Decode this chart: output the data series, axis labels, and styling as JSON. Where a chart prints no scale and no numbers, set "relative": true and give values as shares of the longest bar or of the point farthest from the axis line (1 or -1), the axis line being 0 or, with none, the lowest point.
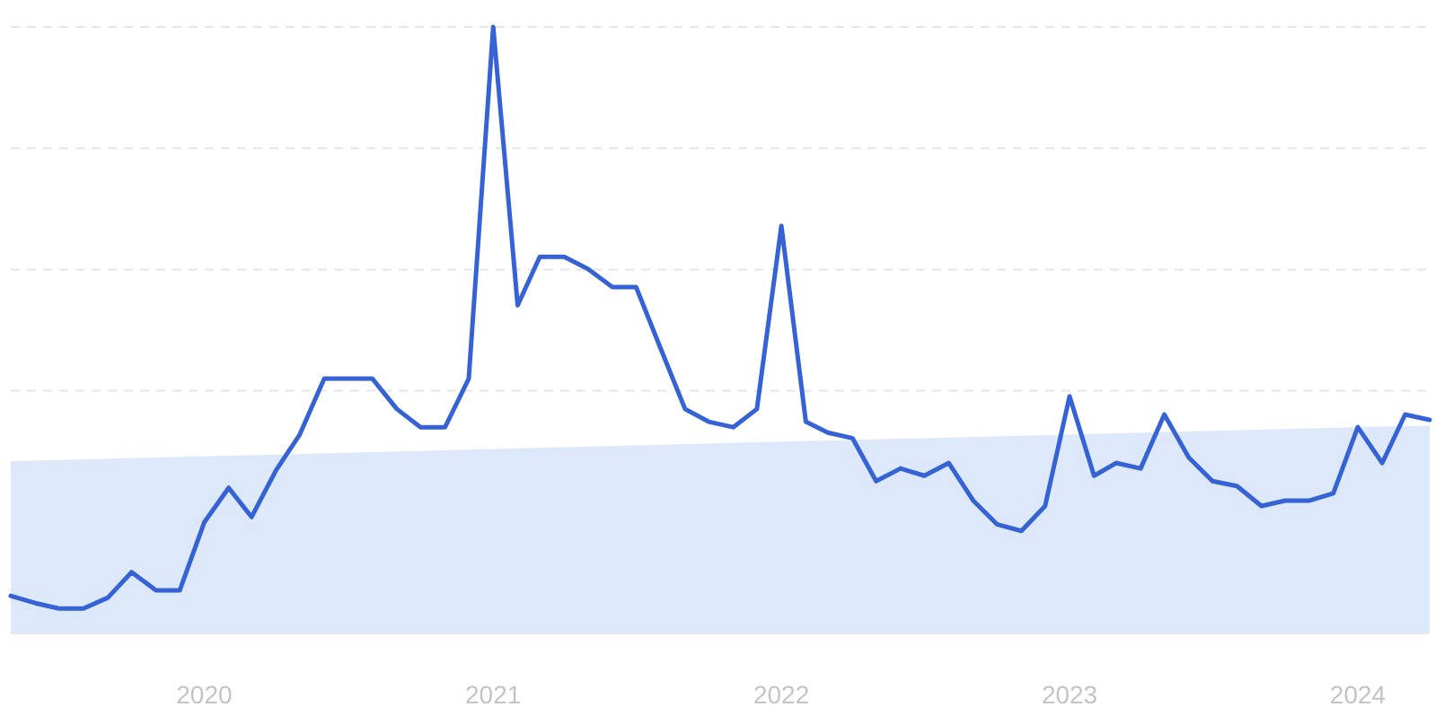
{
  "chart_data": {
    "type": "line",
    "relative": true,
    "x": [
      "2019-05",
      "2019-06",
      "2019-07",
      "2019-08",
      "2019-09",
      "2019-10",
      "2019-11",
      "2019-12",
      "2020-01",
      "2020-02",
      "2020-03",
      "2020-04",
      "2020-05",
      "2020-06",
      "2020-07",
      "2020-08",
      "2020-09",
      "2020-10",
      "2020-11",
      "2020-12",
      "2021-01",
      "2021-02",
      "2021-03",
      "2021-04",
      "2021-05",
      "2021-06",
      "2021-07",
      "2021-08",
      "2021-09",
      "2021-10",
      "2021-11",
      "2021-12",
      "2022-01",
      "2022-02",
      "2022-03",
      "2022-04",
      "2022-05",
      "2022-06",
      "2022-07",
      "2022-08",
      "2022-09",
      "2022-10",
      "2022-11",
      "2022-12",
      "2023-01",
      "2023-02",
      "2023-03",
      "2023-04",
      "2023-05",
      "2023-06",
      "2023-07",
      "2023-08",
      "2023-09",
      "2023-10",
      "2023-11",
      "2023-12",
      "2024-01",
      "2024-02",
      "2024-03",
      "2024-04"
    ],
    "xlim": [
      "2019-05",
      "2024-04"
    ],
    "xticks": [
      "2020",
      "2021",
      "2022",
      "2023",
      "2024"
    ],
    "grid": "y",
    "line_style": "solid",
    "marker": "none",
    "series": [
      {
        "type": "area",
        "color": "#dde9fb",
        "x": [
          "2019-05",
          "2024-04"
        ],
        "values": [
          0.284,
          0.343
        ]
      },
      {
        "color": "#3563d6",
        "values": [
          0.062,
          0.05,
          0.041,
          0.041,
          0.059,
          0.101,
          0.071,
          0.071,
          0.183,
          0.24,
          0.192,
          0.269,
          0.328,
          0.42,
          0.42,
          0.42,
          0.37,
          0.34,
          0.34,
          0.42,
          1,
          0.541,
          0.621,
          0.621,
          0.601,
          0.571,
          0.571,
          0.47,
          0.37,
          0.349,
          0.34,
          0.37,
          0.672,
          0.349,
          0.331,
          0.322,
          0.251,
          0.272,
          0.26,
          0.281,
          0.219,
          0.18,
          0.169,
          0.21,
          0.391,
          0.26,
          0.281,
          0.272,
          0.361,
          0.29,
          0.251,
          0.243,
          0.21,
          0.219,
          0.219,
          0.231,
          0.34,
          0.281,
          0.361,
          0.352
        ]
      }
    ]
  }
}
